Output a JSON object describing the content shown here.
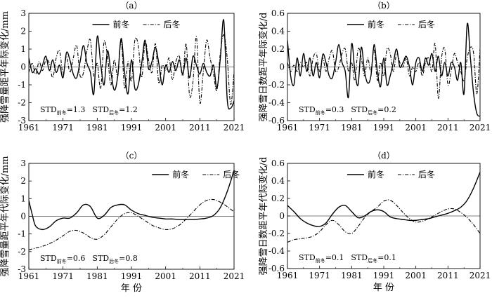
{
  "chart_data": [
    {
      "type": "line",
      "panel_label": "（a）",
      "xlabel": "",
      "ylabel": "强降雪量距平年际变化/mm",
      "xlim": [
        1961,
        2021
      ],
      "ylim": [
        -3,
        3
      ],
      "xticks": [
        1961,
        1971,
        1981,
        1991,
        2001,
        2011,
        2021
      ],
      "yticks": [
        -3,
        -2,
        -1,
        0,
        1,
        2,
        3
      ],
      "legend_position": "top-center",
      "std": {
        "prefix": "STD",
        "entries": [
          {
            "sub": "前冬",
            "value": "=1.3"
          },
          {
            "sub": "后冬",
            "value": "=1.2"
          }
        ]
      },
      "series": [
        {
          "name": "前冬",
          "style": "solid",
          "x": [
            1961,
            1962,
            1963,
            1964,
            1965,
            1966,
            1967,
            1968,
            1969,
            1970,
            1971,
            1972,
            1973,
            1974,
            1975,
            1976,
            1977,
            1978,
            1979,
            1980,
            1981,
            1982,
            1983,
            1984,
            1985,
            1986,
            1987,
            1988,
            1989,
            1990,
            1991,
            1992,
            1993,
            1994,
            1995,
            1996,
            1997,
            1998,
            1999,
            2000,
            2001,
            2002,
            2003,
            2004,
            2005,
            2006,
            2007,
            2008,
            2009,
            2010,
            2011,
            2012,
            2013,
            2014,
            2015,
            2016,
            2017,
            2018,
            2019,
            2020,
            2021
          ],
          "values": [
            0.5,
            -0.3,
            -0.1,
            -0.4,
            0.1,
            0.6,
            -0.2,
            0.4,
            -0.3,
            0.1,
            -0.6,
            0.8,
            0.4,
            -0.4,
            -0.6,
            0.3,
            1.2,
            0.2,
            -0.3,
            -1.5,
            1.7,
            0.2,
            -1.0,
            0.9,
            -0.3,
            -1.3,
            -0.5,
            1.6,
            -0.3,
            -1.5,
            0.4,
            -1.2,
            -1.0,
            0.2,
            1.5,
            -0.1,
            0.3,
            1.1,
            0.2,
            -1.0,
            0.1,
            -0.3,
            0.3,
            -0.2,
            0.4,
            -0.4,
            0.5,
            -0.6,
            0.6,
            0.1,
            -0.4,
            0.2,
            -0.3,
            -0.5,
            0.1,
            -1.2,
            0.5,
            2.6,
            -1.8,
            -2.3,
            -1.9
          ]
        },
        {
          "name": "后冬",
          "style": "dashdot",
          "x": [
            1961,
            1962,
            1963,
            1964,
            1965,
            1966,
            1967,
            1968,
            1969,
            1970,
            1971,
            1972,
            1973,
            1974,
            1975,
            1976,
            1977,
            1978,
            1979,
            1980,
            1981,
            1982,
            1983,
            1984,
            1985,
            1986,
            1987,
            1988,
            1989,
            1990,
            1991,
            1992,
            1993,
            1994,
            1995,
            1996,
            1997,
            1998,
            1999,
            2000,
            2001,
            2002,
            2003,
            2004,
            2005,
            2006,
            2007,
            2008,
            2009,
            2010,
            2011,
            2012,
            2013,
            2014,
            2015,
            2016,
            2017,
            2018,
            2019,
            2020,
            2021
          ],
          "values": [
            -0.3,
            0.2,
            -0.4,
            0.3,
            -0.2,
            0.4,
            0.2,
            -0.6,
            0.5,
            0.9,
            -0.4,
            0.6,
            -0.3,
            0.5,
            1.2,
            -0.5,
            -0.3,
            0.9,
            1.5,
            -0.5,
            0.2,
            -1.2,
            1.4,
            0.6,
            -1.0,
            0.4,
            -0.5,
            1.5,
            -1.2,
            0.3,
            -0.8,
            1.5,
            1.2,
            -0.6,
            1.4,
            0.4,
            -0.3,
            1.3,
            -0.9,
            0.1,
            -0.2,
            0.5,
            -0.7,
            0.3,
            0.6,
            -0.5,
            1.3,
            -1.6,
            -0.8,
            1.7,
            -2.0,
            -0.3,
            1.5,
            0.5,
            -0.4,
            -1.3,
            0.8,
            1.8,
            0.5,
            -2.1,
            -0.3
          ]
        }
      ]
    },
    {
      "type": "line",
      "panel_label": "（b）",
      "xlabel": "",
      "ylabel": "强降雪日数距平年际变化/d",
      "xlim": [
        1961,
        2021
      ],
      "ylim": [
        -0.6,
        0.6
      ],
      "xticks": [
        1961,
        1971,
        1981,
        1991,
        2001,
        2011,
        2021
      ],
      "yticks": [
        -0.6,
        -0.4,
        -0.2,
        0,
        0.2,
        0.4,
        0.6
      ],
      "legend_position": "top-center",
      "std": {
        "prefix": "STD",
        "entries": [
          {
            "sub": "前冬",
            "value": "=0.3"
          },
          {
            "sub": "后冬",
            "value": "=0.2"
          }
        ]
      },
      "series": [
        {
          "name": "前冬",
          "style": "solid",
          "x": [
            1961,
            1962,
            1963,
            1964,
            1965,
            1966,
            1967,
            1968,
            1969,
            1970,
            1971,
            1972,
            1973,
            1974,
            1975,
            1976,
            1977,
            1978,
            1979,
            1980,
            1981,
            1982,
            1983,
            1984,
            1985,
            1986,
            1987,
            1988,
            1989,
            1990,
            1991,
            1992,
            1993,
            1994,
            1995,
            1996,
            1997,
            1998,
            1999,
            2000,
            2001,
            2002,
            2003,
            2004,
            2005,
            2006,
            2007,
            2008,
            2009,
            2010,
            2011,
            2012,
            2013,
            2014,
            2015,
            2016,
            2017,
            2018,
            2019,
            2020,
            2021
          ],
          "values": [
            0.3,
            -0.1,
            -0.2,
            0.1,
            -0.1,
            0.15,
            -0.05,
            0.1,
            -0.1,
            0.05,
            -0.12,
            0.14,
            0.05,
            -0.1,
            -0.12,
            0.05,
            0.25,
            0.05,
            -0.05,
            -0.34,
            0.26,
            -0.05,
            -0.2,
            0.22,
            -0.05,
            -0.18,
            -0.1,
            0.25,
            -0.05,
            -0.22,
            0.1,
            -0.2,
            -0.1,
            0.05,
            0.2,
            0.0,
            0.05,
            0.12,
            0.0,
            -0.2,
            0.05,
            0.1,
            -0.05,
            0.1,
            0.02,
            0.15,
            -0.05,
            0.12,
            -0.1,
            0.05,
            -0.1,
            0.05,
            0.0,
            -0.15,
            0.05,
            -0.3,
            0.48,
            0.1,
            -0.3,
            -0.52,
            -0.55
          ]
        },
        {
          "name": "后冬",
          "style": "dashdot",
          "x": [
            1961,
            1962,
            1963,
            1964,
            1965,
            1966,
            1967,
            1968,
            1969,
            1970,
            1971,
            1972,
            1973,
            1974,
            1975,
            1976,
            1977,
            1978,
            1979,
            1980,
            1981,
            1982,
            1983,
            1984,
            1985,
            1986,
            1987,
            1988,
            1989,
            1990,
            1991,
            1992,
            1993,
            1994,
            1995,
            1996,
            1997,
            1998,
            1999,
            2000,
            2001,
            2002,
            2003,
            2004,
            2005,
            2006,
            2007,
            2008,
            2009,
            2010,
            2011,
            2012,
            2013,
            2014,
            2015,
            2016,
            2017,
            2018,
            2019,
            2020,
            2021
          ],
          "values": [
            0.05,
            -0.05,
            0.02,
            -0.05,
            0.05,
            0.0,
            0.05,
            -0.1,
            0.1,
            0.15,
            -0.05,
            0.1,
            -0.05,
            0.1,
            0.18,
            -0.05,
            0.0,
            0.15,
            0.2,
            -0.05,
            0.05,
            -0.15,
            0.2,
            0.1,
            -0.1,
            0.1,
            -0.05,
            0.2,
            -0.15,
            0.05,
            -0.1,
            0.2,
            0.15,
            -0.05,
            0.15,
            0.05,
            0.0,
            0.1,
            -0.1,
            0.0,
            -0.05,
            0.05,
            -0.1,
            0.05,
            0.1,
            -0.05,
            0.26,
            -0.35,
            0.1,
            0.2,
            -0.2,
            -0.05,
            0.15,
            0.05,
            -0.05,
            -0.15,
            0.1,
            0.22,
            0.15,
            -0.3,
            0.2
          ]
        }
      ]
    },
    {
      "type": "line",
      "panel_label": "（c）",
      "xlabel": "年  份",
      "ylabel": "强降雪量距平年代际变化/mm",
      "xlim": [
        1961,
        2021
      ],
      "ylim": [
        -3,
        3
      ],
      "xticks": [
        1961,
        1971,
        1981,
        1991,
        2001,
        2011,
        2021
      ],
      "yticks": [
        -3,
        -2,
        -1,
        0,
        1,
        2,
        3
      ],
      "legend_position": "top-right",
      "std": {
        "prefix": "STD",
        "entries": [
          {
            "sub": "前冬",
            "value": "=0.6"
          },
          {
            "sub": "后冬",
            "value": "=0.8"
          }
        ]
      },
      "series": [
        {
          "name": "前冬",
          "style": "solid",
          "x": [
            1961,
            1962,
            1963,
            1965,
            1967,
            1969,
            1971,
            1973,
            1975,
            1977,
            1979,
            1981,
            1983,
            1985,
            1987,
            1989,
            1991,
            1993,
            1995,
            1997,
            1999,
            2001,
            2003,
            2005,
            2007,
            2009,
            2011,
            2013,
            2015,
            2017,
            2019,
            2021
          ],
          "values": [
            0.9,
            0.1,
            -0.55,
            -0.75,
            -0.6,
            -0.25,
            -0.1,
            -0.1,
            0.2,
            0.65,
            0.55,
            -0.1,
            0.05,
            0.5,
            0.65,
            0.65,
            0.35,
            0.15,
            0.05,
            -0.05,
            -0.1,
            -0.15,
            -0.15,
            -0.18,
            -0.18,
            -0.18,
            -0.15,
            -0.1,
            0.05,
            0.5,
            1.4,
            2.6
          ]
        },
        {
          "name": "后冬",
          "style": "dashdot",
          "x": [
            1961,
            1963,
            1965,
            1967,
            1969,
            1971,
            1973,
            1975,
            1977,
            1979,
            1981,
            1983,
            1985,
            1987,
            1989,
            1991,
            1993,
            1995,
            1997,
            1999,
            2001,
            2003,
            2005,
            2007,
            2009,
            2011,
            2013,
            2015,
            2017,
            2019,
            2021
          ],
          "values": [
            -1.9,
            -1.8,
            -1.7,
            -1.55,
            -1.35,
            -1.1,
            -0.85,
            -0.8,
            -0.95,
            -1.2,
            -1.3,
            -1.05,
            -0.6,
            -0.15,
            0.15,
            0.2,
            0.0,
            -0.25,
            -0.5,
            -0.65,
            -0.75,
            -0.7,
            -0.5,
            -0.15,
            0.25,
            0.65,
            0.9,
            0.95,
            0.8,
            0.55,
            0.25
          ]
        }
      ]
    },
    {
      "type": "line",
      "panel_label": "（d）",
      "xlabel": "年  份",
      "ylabel": "强降雪日数距平年代际变化/d",
      "xlim": [
        1961,
        2021
      ],
      "ylim": [
        -0.6,
        0.6
      ],
      "xticks": [
        1961,
        1971,
        1981,
        1991,
        2001,
        2011,
        2021
      ],
      "yticks": [
        -0.6,
        -0.4,
        -0.2,
        0,
        0.2,
        0.4,
        0.6
      ],
      "legend_position": "top-center",
      "std": {
        "prefix": "STD",
        "entries": [
          {
            "sub": "前冬",
            "value": "=0.1"
          },
          {
            "sub": "后冬",
            "value": "=0.1"
          }
        ]
      },
      "series": [
        {
          "name": "前冬",
          "style": "solid",
          "x": [
            1961,
            1963,
            1965,
            1967,
            1969,
            1971,
            1973,
            1975,
            1977,
            1979,
            1981,
            1983,
            1985,
            1987,
            1989,
            1991,
            1993,
            1995,
            1997,
            1999,
            2001,
            2003,
            2005,
            2007,
            2009,
            2011,
            2013,
            2015,
            2017,
            2019,
            2021
          ],
          "values": [
            0.12,
            0.05,
            -0.03,
            -0.08,
            -0.11,
            -0.12,
            -0.08,
            0.02,
            0.1,
            0.12,
            0.05,
            -0.02,
            0.0,
            0.05,
            0.07,
            0.05,
            -0.01,
            -0.03,
            -0.04,
            -0.05,
            -0.05,
            -0.04,
            -0.03,
            -0.01,
            0.01,
            0.03,
            0.06,
            0.1,
            0.18,
            0.32,
            0.5
          ]
        },
        {
          "name": "后冬",
          "style": "dashdot",
          "x": [
            1961,
            1963,
            1965,
            1967,
            1969,
            1971,
            1973,
            1975,
            1977,
            1979,
            1981,
            1983,
            1985,
            1987,
            1989,
            1991,
            1993,
            1995,
            1997,
            1999,
            2001,
            2003,
            2005,
            2007,
            2009,
            2011,
            2013,
            2015,
            2017,
            2019,
            2021
          ],
          "values": [
            -0.3,
            -0.27,
            -0.26,
            -0.25,
            -0.23,
            -0.18,
            -0.1,
            -0.05,
            -0.1,
            -0.18,
            -0.2,
            -0.12,
            -0.02,
            0.05,
            0.1,
            0.17,
            0.18,
            0.12,
            0.04,
            -0.03,
            -0.07,
            -0.06,
            -0.03,
            0.01,
            0.05,
            0.08,
            0.08,
            0.04,
            -0.02,
            -0.1,
            -0.2
          ]
        }
      ]
    }
  ]
}
